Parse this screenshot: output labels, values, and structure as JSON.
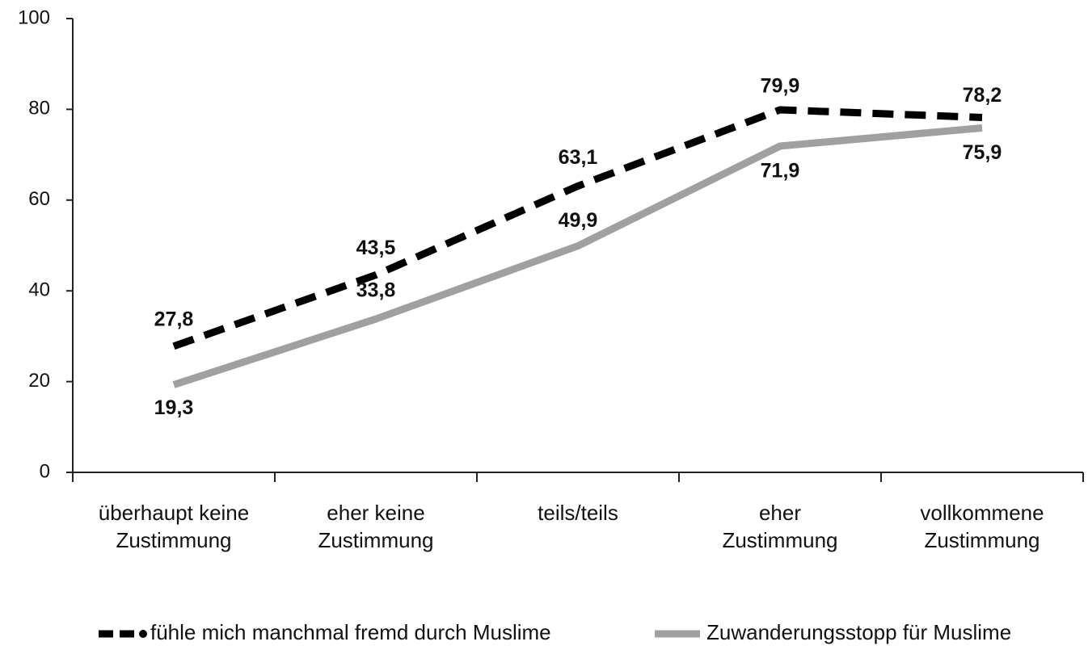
{
  "chart_data": {
    "type": "line",
    "categories": [
      "überhaupt keine\nZustimmung",
      "eher keine\nZustimmung",
      "teils/teils",
      "eher\nZustimmung",
      "vollkommene\nZustimmung"
    ],
    "series": [
      {
        "name": "fühle mich manchmal fremd durch Muslime",
        "color": "#000000",
        "style": "dashed",
        "values": [
          27.8,
          43.5,
          63.1,
          79.9,
          78.2
        ],
        "value_labels": [
          "27,8",
          "43,5",
          "63,1",
          "79,9",
          "78,2"
        ]
      },
      {
        "name": "Zuwanderungsstopp für Muslime",
        "color": "#a0a0a0",
        "style": "solid",
        "values": [
          19.3,
          33.8,
          49.9,
          71.9,
          75.9
        ],
        "value_labels": [
          "19,3",
          "33,8",
          "49,9",
          "71,9",
          "75,9"
        ]
      }
    ],
    "ylim": [
      0,
      100
    ],
    "yticks": [
      0,
      20,
      40,
      60,
      80,
      100
    ],
    "grid": false
  }
}
